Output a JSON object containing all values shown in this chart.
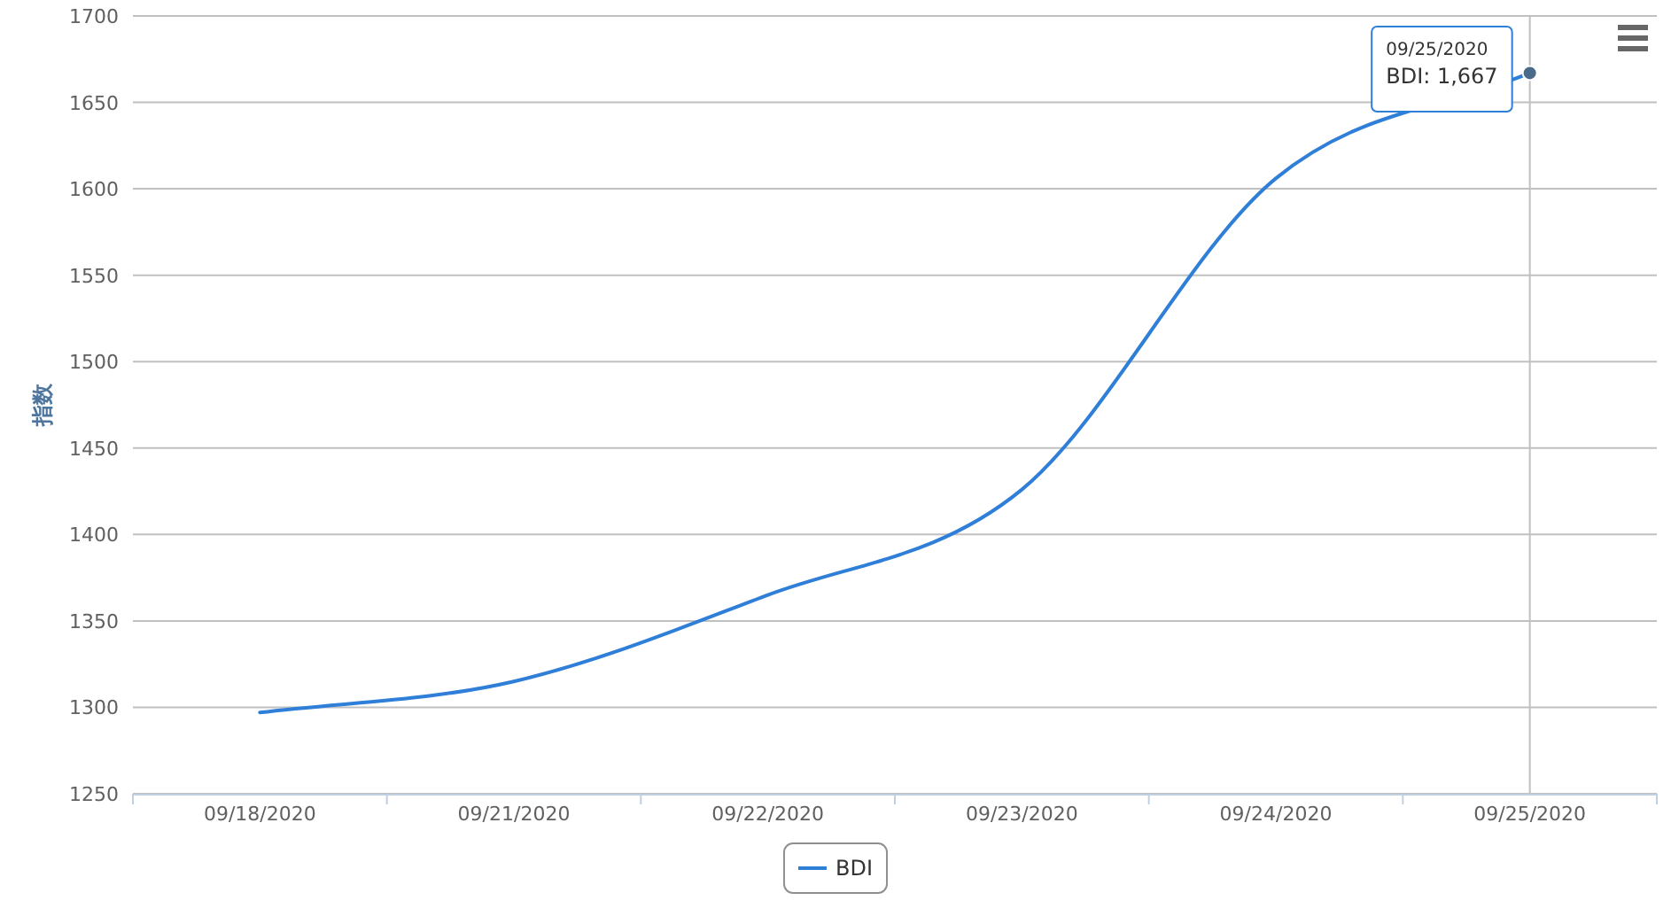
{
  "chart_data": {
    "type": "line",
    "ylabel": "指数",
    "categories": [
      "09/18/2020",
      "09/21/2020",
      "09/22/2020",
      "09/23/2020",
      "09/24/2020",
      "09/25/2020"
    ],
    "series": [
      {
        "name": "BDI",
        "color": "#2f7ed8",
        "values": [
          1297,
          1315,
          1365,
          1426,
          1606,
          1667
        ]
      }
    ],
    "ylim": [
      1250,
      1700
    ],
    "yticks": [
      1250,
      1300,
      1350,
      1400,
      1450,
      1500,
      1550,
      1600,
      1650,
      1700
    ],
    "grid": "y",
    "legend": "bottom",
    "marker": "none",
    "line_style": "solid",
    "ref_lines": [
      {
        "axis": "x",
        "value": "09/25/2020",
        "color": "#c0c0c0"
      }
    ],
    "annotations": [
      {
        "text": "09/25/2020\nBDI: 1,667",
        "x": "09/25/2020",
        "y": 1667
      }
    ]
  }
}
